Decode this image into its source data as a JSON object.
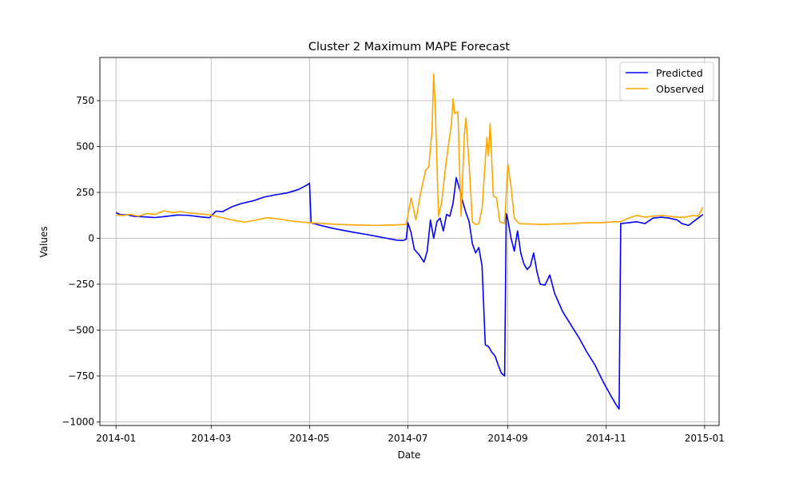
{
  "chart_data": {
    "type": "line",
    "title": "Cluster 2 Maximum MAPE Forecast",
    "xlabel": "Date",
    "ylabel": "Values",
    "x_axis_type": "date",
    "xlim": [
      "2013-12-22",
      "2015-01-10"
    ],
    "ylim": [
      -1020,
      985
    ],
    "x_ticks": [
      "2014-01-01",
      "2014-03-01",
      "2014-05-01",
      "2014-07-01",
      "2014-09-01",
      "2014-11-01",
      "2015-01-01"
    ],
    "x_tick_labels": [
      "2014-01",
      "2014-03",
      "2014-05",
      "2014-07",
      "2014-09",
      "2014-11",
      "2015-01"
    ],
    "y_ticks": [
      -1000,
      -750,
      -500,
      -250,
      0,
      250,
      500,
      750
    ],
    "y_tick_labels": [
      "−1000",
      "−750",
      "−500",
      "−250",
      "0",
      "250",
      "500",
      "750"
    ],
    "grid": true,
    "legend_position": "top-right",
    "series": [
      {
        "name": "Predicted",
        "color": "#0000ff",
        "points": [
          [
            "2014-01-01",
            140
          ],
          [
            "2014-01-04",
            128
          ],
          [
            "2014-01-08",
            128
          ],
          [
            "2014-01-12",
            120
          ],
          [
            "2014-01-18",
            117
          ],
          [
            "2014-01-25",
            113
          ],
          [
            "2014-01-31",
            118
          ],
          [
            "2014-02-08",
            127
          ],
          [
            "2014-02-15",
            125
          ],
          [
            "2014-02-22",
            117
          ],
          [
            "2014-02-28",
            112
          ],
          [
            "2014-03-04",
            148
          ],
          [
            "2014-03-08",
            145
          ],
          [
            "2014-03-14",
            172
          ],
          [
            "2014-03-20",
            190
          ],
          [
            "2014-03-27",
            204
          ],
          [
            "2014-04-03",
            225
          ],
          [
            "2014-04-10",
            237
          ],
          [
            "2014-04-17",
            247
          ],
          [
            "2014-04-24",
            265
          ],
          [
            "2014-04-30",
            293
          ],
          [
            "2014-05-01",
            300
          ],
          [
            "2014-05-02",
            84
          ],
          [
            "2014-05-08",
            70
          ],
          [
            "2014-05-15",
            55
          ],
          [
            "2014-05-22",
            43
          ],
          [
            "2014-05-30",
            30
          ],
          [
            "2014-06-06",
            20
          ],
          [
            "2014-06-12",
            10
          ],
          [
            "2014-06-18",
            0
          ],
          [
            "2014-06-24",
            -10
          ],
          [
            "2014-06-28",
            -12
          ],
          [
            "2014-06-30",
            -5
          ],
          [
            "2014-07-01",
            85
          ],
          [
            "2014-07-03",
            30
          ],
          [
            "2014-07-05",
            -60
          ],
          [
            "2014-07-08",
            -90
          ],
          [
            "2014-07-11",
            -130
          ],
          [
            "2014-07-13",
            -70
          ],
          [
            "2014-07-15",
            100
          ],
          [
            "2014-07-17",
            0
          ],
          [
            "2014-07-19",
            90
          ],
          [
            "2014-07-21",
            110
          ],
          [
            "2014-07-23",
            40
          ],
          [
            "2014-07-25",
            130
          ],
          [
            "2014-07-27",
            120
          ],
          [
            "2014-07-29",
            190
          ],
          [
            "2014-07-31",
            330
          ],
          [
            "2014-08-02",
            270
          ],
          [
            "2014-08-04",
            200
          ],
          [
            "2014-08-06",
            140
          ],
          [
            "2014-08-08",
            90
          ],
          [
            "2014-08-10",
            -30
          ],
          [
            "2014-08-12",
            -80
          ],
          [
            "2014-08-14",
            -50
          ],
          [
            "2014-08-16",
            -150
          ],
          [
            "2014-08-18",
            -580
          ],
          [
            "2014-08-20",
            -590
          ],
          [
            "2014-08-22",
            -620
          ],
          [
            "2014-08-24",
            -640
          ],
          [
            "2014-08-26",
            -690
          ],
          [
            "2014-08-28",
            -735
          ],
          [
            "2014-08-30",
            -750
          ],
          [
            "2014-08-31",
            135
          ],
          [
            "2014-09-01",
            100
          ],
          [
            "2014-09-03",
            0
          ],
          [
            "2014-09-05",
            -70
          ],
          [
            "2014-09-07",
            40
          ],
          [
            "2014-09-09",
            -80
          ],
          [
            "2014-09-11",
            -140
          ],
          [
            "2014-09-13",
            -170
          ],
          [
            "2014-09-15",
            -150
          ],
          [
            "2014-09-17",
            -80
          ],
          [
            "2014-09-19",
            -180
          ],
          [
            "2014-09-21",
            -250
          ],
          [
            "2014-09-24",
            -255
          ],
          [
            "2014-09-27",
            -200
          ],
          [
            "2014-09-30",
            -300
          ],
          [
            "2014-10-05",
            -400
          ],
          [
            "2014-10-10",
            -470
          ],
          [
            "2014-10-15",
            -540
          ],
          [
            "2014-10-20",
            -620
          ],
          [
            "2014-10-25",
            -690
          ],
          [
            "2014-10-30",
            -780
          ],
          [
            "2014-11-04",
            -860
          ],
          [
            "2014-11-07",
            -905
          ],
          [
            "2014-11-09",
            -930
          ],
          [
            "2014-11-10",
            80
          ],
          [
            "2014-11-15",
            85
          ],
          [
            "2014-11-20",
            90
          ],
          [
            "2014-11-25",
            80
          ],
          [
            "2014-11-30",
            110
          ],
          [
            "2014-12-05",
            115
          ],
          [
            "2014-12-10",
            110
          ],
          [
            "2014-12-15",
            100
          ],
          [
            "2014-12-18",
            80
          ],
          [
            "2014-12-22",
            70
          ],
          [
            "2014-12-25",
            90
          ],
          [
            "2014-12-28",
            110
          ],
          [
            "2014-12-31",
            130
          ]
        ]
      },
      {
        "name": "Observed",
        "color": "#ffa500",
        "points": [
          [
            "2014-01-01",
            128
          ],
          [
            "2014-01-05",
            124
          ],
          [
            "2014-01-10",
            130
          ],
          [
            "2014-01-15",
            120
          ],
          [
            "2014-01-20",
            135
          ],
          [
            "2014-01-25",
            130
          ],
          [
            "2014-01-31",
            150
          ],
          [
            "2014-02-05",
            140
          ],
          [
            "2014-02-10",
            145
          ],
          [
            "2014-02-15",
            138
          ],
          [
            "2014-02-20",
            135
          ],
          [
            "2014-02-28",
            128
          ],
          [
            "2014-03-08",
            112
          ],
          [
            "2014-03-15",
            98
          ],
          [
            "2014-03-22",
            88
          ],
          [
            "2014-03-29",
            100
          ],
          [
            "2014-04-05",
            112
          ],
          [
            "2014-04-12",
            105
          ],
          [
            "2014-04-19",
            95
          ],
          [
            "2014-04-26",
            88
          ],
          [
            "2014-05-01",
            85
          ],
          [
            "2014-05-10",
            80
          ],
          [
            "2014-05-20",
            75
          ],
          [
            "2014-06-01",
            72
          ],
          [
            "2014-06-10",
            70
          ],
          [
            "2014-06-20",
            72
          ],
          [
            "2014-06-30",
            75
          ],
          [
            "2014-07-03",
            220
          ],
          [
            "2014-07-06",
            100
          ],
          [
            "2014-07-09",
            250
          ],
          [
            "2014-07-12",
            370
          ],
          [
            "2014-07-14",
            390
          ],
          [
            "2014-07-16",
            590
          ],
          [
            "2014-07-17",
            895
          ],
          [
            "2014-07-18",
            720
          ],
          [
            "2014-07-20",
            120
          ],
          [
            "2014-07-22",
            200
          ],
          [
            "2014-07-24",
            360
          ],
          [
            "2014-07-26",
            500
          ],
          [
            "2014-07-28",
            620
          ],
          [
            "2014-07-29",
            760
          ],
          [
            "2014-07-30",
            680
          ],
          [
            "2014-08-01",
            690
          ],
          [
            "2014-08-03",
            120
          ],
          [
            "2014-08-05",
            560
          ],
          [
            "2014-08-06",
            655
          ],
          [
            "2014-08-08",
            400
          ],
          [
            "2014-08-10",
            90
          ],
          [
            "2014-08-12",
            75
          ],
          [
            "2014-08-14",
            80
          ],
          [
            "2014-08-16",
            160
          ],
          [
            "2014-08-19",
            550
          ],
          [
            "2014-08-20",
            450
          ],
          [
            "2014-08-21",
            625
          ],
          [
            "2014-08-23",
            230
          ],
          [
            "2014-08-25",
            220
          ],
          [
            "2014-08-27",
            90
          ],
          [
            "2014-08-30",
            80
          ],
          [
            "2014-09-01",
            405
          ],
          [
            "2014-09-03",
            280
          ],
          [
            "2014-09-05",
            110
          ],
          [
            "2014-09-08",
            80
          ],
          [
            "2014-09-15",
            78
          ],
          [
            "2014-09-22",
            75
          ],
          [
            "2014-09-30",
            78
          ],
          [
            "2014-10-10",
            80
          ],
          [
            "2014-10-20",
            85
          ],
          [
            "2014-10-30",
            85
          ],
          [
            "2014-11-05",
            90
          ],
          [
            "2014-11-10",
            90
          ],
          [
            "2014-11-15",
            110
          ],
          [
            "2014-11-20",
            125
          ],
          [
            "2014-11-25",
            115
          ],
          [
            "2014-11-30",
            120
          ],
          [
            "2014-12-05",
            125
          ],
          [
            "2014-12-10",
            120
          ],
          [
            "2014-12-15",
            115
          ],
          [
            "2014-12-20",
            115
          ],
          [
            "2014-12-25",
            125
          ],
          [
            "2014-12-28",
            120
          ],
          [
            "2014-12-31",
            170
          ]
        ]
      }
    ]
  }
}
